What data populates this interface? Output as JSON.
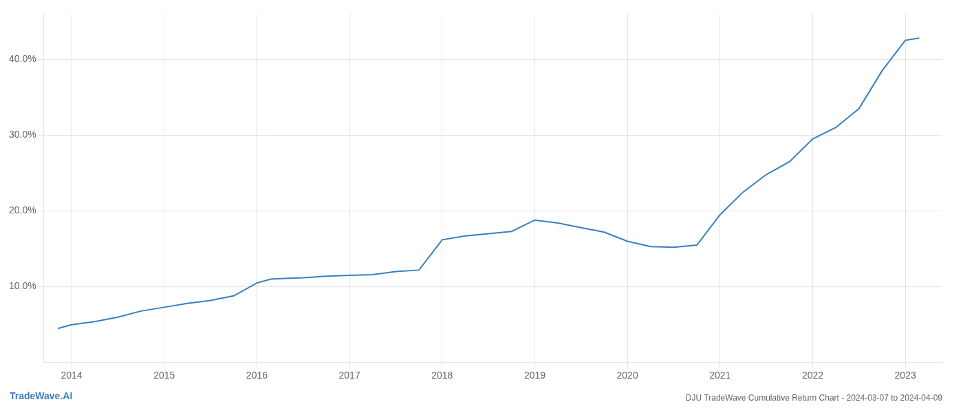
{
  "chart_data": {
    "type": "line",
    "title": "DJU TradeWave Cumulative Return Chart - 2024-03-07 to 2024-04-09",
    "annotations": [
      {
        "text": "TradeWave.AI",
        "color": "#3a7ebf"
      }
    ],
    "x": [
      2013.85,
      2014.0,
      2014.25,
      2014.5,
      2014.75,
      2015.0,
      2015.25,
      2015.5,
      2015.75,
      2016.0,
      2016.15,
      2016.3,
      2016.5,
      2016.75,
      2017.0,
      2017.25,
      2017.5,
      2017.75,
      2018.0,
      2018.25,
      2018.5,
      2018.75,
      2019.0,
      2019.25,
      2019.5,
      2019.75,
      2020.0,
      2020.25,
      2020.5,
      2020.75,
      2021.0,
      2021.25,
      2021.5,
      2021.75,
      2022.0,
      2022.25,
      2022.5,
      2022.75,
      2023.0,
      2023.15
    ],
    "values": [
      4.5,
      5.0,
      5.4,
      6.0,
      6.8,
      7.3,
      7.8,
      8.2,
      8.8,
      10.5,
      11.0,
      11.1,
      11.2,
      11.4,
      11.5,
      11.6,
      12.0,
      12.2,
      16.2,
      16.7,
      17.0,
      17.3,
      18.8,
      18.4,
      17.8,
      17.2,
      16.0,
      15.3,
      15.2,
      15.5,
      19.5,
      22.5,
      24.8,
      26.5,
      29.5,
      31.0,
      33.5,
      38.5,
      42.5,
      42.8
    ],
    "color": "#3a7ebf",
    "xlim": [
      2013.7,
      2023.4
    ],
    "xticks": [
      2014,
      2015,
      2016,
      2017,
      2018,
      2019,
      2020,
      2021,
      2022,
      2023
    ],
    "ylim": [
      0,
      46
    ],
    "yticks": [
      {
        "value": 10,
        "label": "10.0%"
      },
      {
        "value": 20,
        "label": "20.0%"
      },
      {
        "value": 30,
        "label": "30.0%"
      },
      {
        "value": 40,
        "label": "40.0%"
      }
    ],
    "grid": true
  }
}
